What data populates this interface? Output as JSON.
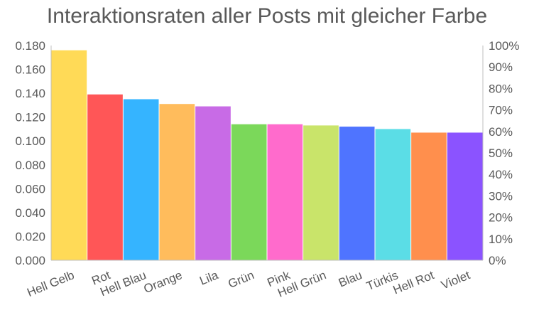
{
  "chart_data": {
    "type": "bar",
    "title": "Interaktionsraten aller Posts mit gleicher Farbe",
    "categories": [
      "Hell Gelb",
      "Rot",
      "Hell Blau",
      "Orange",
      "Lila",
      "Grün",
      "Pink",
      "Hell Grün",
      "Blau",
      "Türkis",
      "Hell Rot",
      "Violet"
    ],
    "values": [
      0.176,
      0.139,
      0.135,
      0.131,
      0.129,
      0.114,
      0.114,
      0.113,
      0.112,
      0.11,
      0.107,
      0.107
    ],
    "colors": [
      "#FFDA57",
      "#FF5657",
      "#35B4FF",
      "#FFBC5C",
      "#C86BE6",
      "#7BD85A",
      "#FF6BCC",
      "#C9E46A",
      "#4F74FF",
      "#5BDDE6",
      "#FF8F4D",
      "#8B53FF"
    ],
    "ylim": [
      0,
      0.18
    ],
    "yticks": [
      "0.000",
      "0.020",
      "0.040",
      "0.060",
      "0.080",
      "0.100",
      "0.120",
      "0.140",
      "0.160",
      "0.180"
    ],
    "y2ticks": [
      "0%",
      "10%",
      "20%",
      "30%",
      "40%",
      "50%",
      "60%",
      "70%",
      "80%",
      "90%",
      "100%"
    ],
    "y2lim": [
      0,
      100
    ],
    "grid": false,
    "legend": "none",
    "xlabel": "",
    "ylabel": ""
  }
}
